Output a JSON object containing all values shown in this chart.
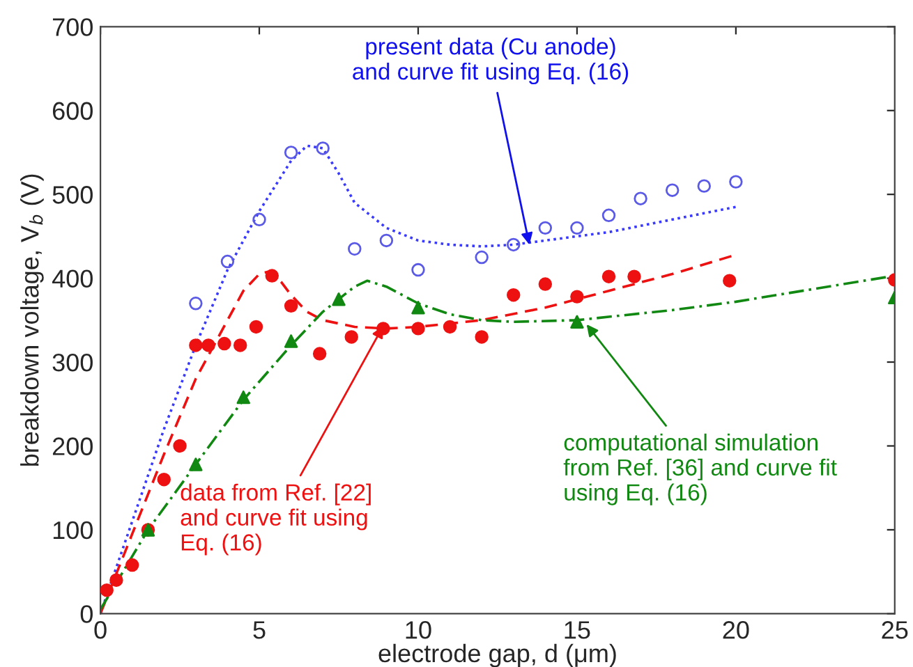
{
  "chart_data": {
    "type": "scatter",
    "xlabel": "electrode gap, d (μm)",
    "ylabel": "breakdown voltage, V$_{b}$ (V)",
    "xlim": [
      0,
      25
    ],
    "ylim": [
      0,
      700
    ],
    "xticks": [
      0,
      5,
      10,
      15,
      20,
      25
    ],
    "yticks": [
      0,
      100,
      200,
      300,
      400,
      500,
      600,
      700
    ],
    "grid": false,
    "series": [
      {
        "color": "#5a5ae6",
        "marker": "circle",
        "x": [
          3,
          4,
          5,
          6,
          7,
          8,
          9,
          10,
          12,
          13,
          14,
          15,
          16,
          17,
          18,
          19,
          20
        ],
        "values": [
          370,
          420,
          470,
          550,
          555,
          435,
          445,
          410,
          425,
          440,
          460,
          460,
          475,
          495,
          505,
          510,
          515
        ]
      },
      {
        "type": "line",
        "color": "#3a3aff",
        "line_style": "dotted",
        "x": [
          0,
          1,
          2,
          3,
          4,
          5,
          6,
          6.5,
          7,
          7.5,
          8,
          9,
          10,
          11,
          12,
          13,
          14,
          16,
          18,
          20
        ],
        "values": [
          0,
          110,
          220,
          320,
          410,
          480,
          540,
          558,
          555,
          525,
          490,
          460,
          445,
          440,
          438,
          440,
          445,
          455,
          470,
          485
        ]
      },
      {
        "color": "#ee1111",
        "marker": "circle",
        "x": [
          0.2,
          0.5,
          1,
          1.5,
          2,
          2.5,
          3,
          3.4,
          3.9,
          4.4,
          4.9,
          5.4,
          6,
          6.9,
          7.9,
          8.9,
          10,
          11,
          12,
          13,
          14,
          15,
          16,
          16.8,
          19.8,
          25
        ],
        "values": [
          28,
          40,
          58,
          100,
          160,
          200,
          320,
          320,
          322,
          320,
          342,
          403,
          367,
          310,
          330,
          340,
          340,
          342,
          330,
          380,
          393,
          378,
          402,
          402,
          397,
          398
        ]
      },
      {
        "type": "line",
        "color": "#ee1111",
        "line_style": "dashed",
        "x": [
          0,
          1,
          2,
          3,
          4,
          4.5,
          5,
          5.3,
          5.7,
          6,
          6.5,
          7,
          8,
          9,
          10,
          12,
          14,
          16,
          18,
          20
        ],
        "values": [
          0,
          95,
          190,
          280,
          350,
          385,
          405,
          408,
          395,
          380,
          360,
          350,
          342,
          340,
          342,
          350,
          365,
          385,
          405,
          428
        ]
      },
      {
        "color": "#118811",
        "marker": "triangle",
        "x": [
          1.5,
          3,
          4.5,
          6,
          7.5,
          10,
          15,
          25
        ],
        "values": [
          100,
          178,
          258,
          325,
          375,
          365,
          348,
          377
        ]
      },
      {
        "type": "line",
        "color": "#118811",
        "line_style": "dashdot",
        "x": [
          0,
          1.5,
          3,
          4.5,
          6,
          7,
          8,
          8.4,
          9,
          10,
          11,
          12,
          13,
          15,
          18,
          20,
          25
        ],
        "values": [
          5,
          100,
          178,
          255,
          320,
          360,
          390,
          397,
          390,
          370,
          357,
          350,
          348,
          350,
          362,
          372,
          403
        ]
      }
    ],
    "annotations": [
      {
        "text": "present data (Cu anode)\nand curve fit using Eq. (16)",
        "x": 13.5,
        "y": 440
      },
      {
        "text": "data from Ref. [22]\nand curve fit using\nEq. (16)",
        "x": 8.9,
        "y": 343
      },
      {
        "text": "computational simulation\nfrom Ref. [36] and curve fit\nusing Eq. (16)",
        "x": 15.3,
        "y": 345
      }
    ]
  }
}
